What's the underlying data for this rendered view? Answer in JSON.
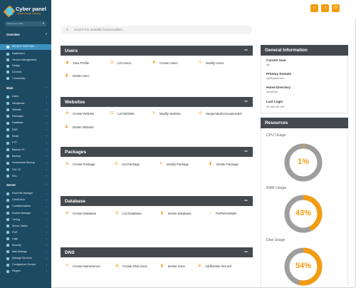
{
  "brand": {
    "name": "Cyber panel",
    "tagline": "Supercharge Hosting"
  },
  "sidebar": {
    "host_selector": "Select your PHP",
    "sections": [
      {
        "label": "Overview",
        "items": [
          {
            "label": "Dashboard",
            "active": false
          },
          {
            "label": "Version Management",
            "active": false
          },
          {
            "label": "Design",
            "active": false
          },
          {
            "label": "Connect",
            "active": false
          },
          {
            "label": "Community",
            "active": false
          }
        ]
      },
      {
        "label": "Main",
        "items": [
          {
            "label": "Users"
          },
          {
            "label": "Wordpress"
          },
          {
            "label": "Website"
          },
          {
            "label": "Packages"
          },
          {
            "label": "Database"
          },
          {
            "label": "DNS"
          },
          {
            "label": "Email"
          },
          {
            "label": "FTP"
          },
          {
            "label": "Backup V2"
          },
          {
            "label": "Backup"
          },
          {
            "label": "Incremental Backup"
          },
          {
            "label": "SSL V2"
          },
          {
            "label": "SSL"
          }
        ]
      },
      {
        "label": "Server",
        "items": [
          {
            "label": "Root File Manager"
          },
          {
            "label": "CloudLinux"
          },
          {
            "label": "Containerization"
          },
          {
            "label": "Docker Manager"
          },
          {
            "label": "Tuning"
          },
          {
            "label": "Server Status"
          },
          {
            "label": "PHP"
          },
          {
            "label": "Logs"
          },
          {
            "label": "Security"
          },
          {
            "label": "Mail Settings"
          },
          {
            "label": "Manage Services"
          },
          {
            "label": "Configserver Service"
          },
          {
            "label": "Plugins"
          }
        ]
      }
    ],
    "active_badge": "SELECT HOSTING"
  },
  "search": {
    "placeholder": "Search the available functionalities..."
  },
  "panels": {
    "users": {
      "title": "Users",
      "actions": [
        "View Profile",
        "List Users",
        "Create Users",
        "Modify Users",
        "Delete User"
      ]
    },
    "websites": {
      "title": "Websites",
      "actions": [
        "Create Website",
        "List Website",
        "Modify Website",
        "Suspended/Unsuspended",
        "Delete Website"
      ]
    },
    "packages": {
      "title": "Packages",
      "actions": [
        "Create Package",
        "List Package",
        "Modify Package",
        "Delete Package"
      ]
    },
    "database": {
      "title": "Database",
      "actions": [
        "Create Database",
        "List Database",
        "Delete Database",
        "PHPMYADMIN"
      ]
    },
    "dns": {
      "title": "DNS",
      "actions": [
        "Create NameServer",
        "Create DNS Zone",
        "Delete Zone",
        "Add/Delete Record"
      ]
    }
  },
  "general_info": {
    "title": "General Information",
    "current_user_label": "Current User",
    "current_user": "cpt",
    "primary_domain_label": "Primary Domain",
    "primary_domain": "cyberpanel.com",
    "home_directory_label": "Home Directory",
    "home_directory": "/home/cpt",
    "last_login_label": "Last Login",
    "last_login": "45.108.135.149"
  },
  "resources": {
    "title": "Resources",
    "cpu_label": "CPU Usage",
    "cpu_value": "1%",
    "cpu_fraction": 0.01,
    "ram_label": "RAM Usage",
    "ram_value": "43%",
    "ram_fraction": 0.43,
    "disk_label": "Disk Usage",
    "disk_value": "54%",
    "disk_fraction": 0.54
  },
  "colors": {
    "accent": "#f39c12",
    "sidebar": "#1d4a63",
    "panel_header": "#44494e",
    "gauge_track": "#9e9e9e"
  }
}
